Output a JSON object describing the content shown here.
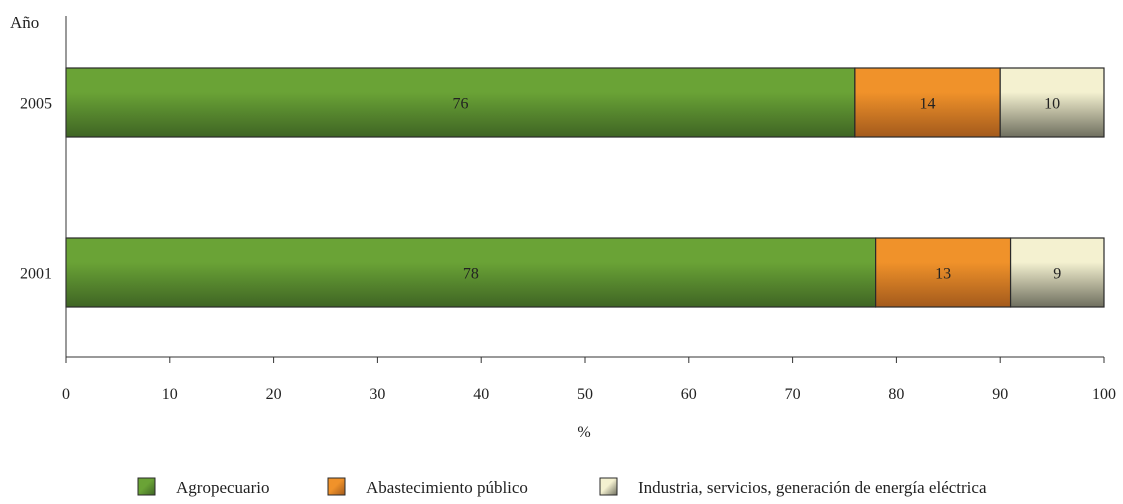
{
  "chart_data": {
    "type": "bar",
    "orientation": "horizontal",
    "stacked": true,
    "title": "",
    "ylabel": "Año",
    "xlabel": "%",
    "xlim": [
      0,
      100
    ],
    "xticks": [
      0,
      10,
      20,
      30,
      40,
      50,
      60,
      70,
      80,
      90,
      100
    ],
    "categories": [
      "2005",
      "2001"
    ],
    "series": [
      {
        "name": "Agropecuario",
        "values": [
          76,
          78
        ],
        "color": "#6aa336",
        "color_dark": "#3f6524"
      },
      {
        "name": "Abastecimiento público",
        "values": [
          14,
          13
        ],
        "color": "#f0922a",
        "color_dark": "#a35a1c"
      },
      {
        "name": "Industria, servicios, generación de energía eléctrica",
        "values": [
          10,
          9
        ],
        "color": "#f4f1d0",
        "color_dark": "#6f6f5f"
      }
    ],
    "grid": false,
    "legend_position": "bottom"
  }
}
